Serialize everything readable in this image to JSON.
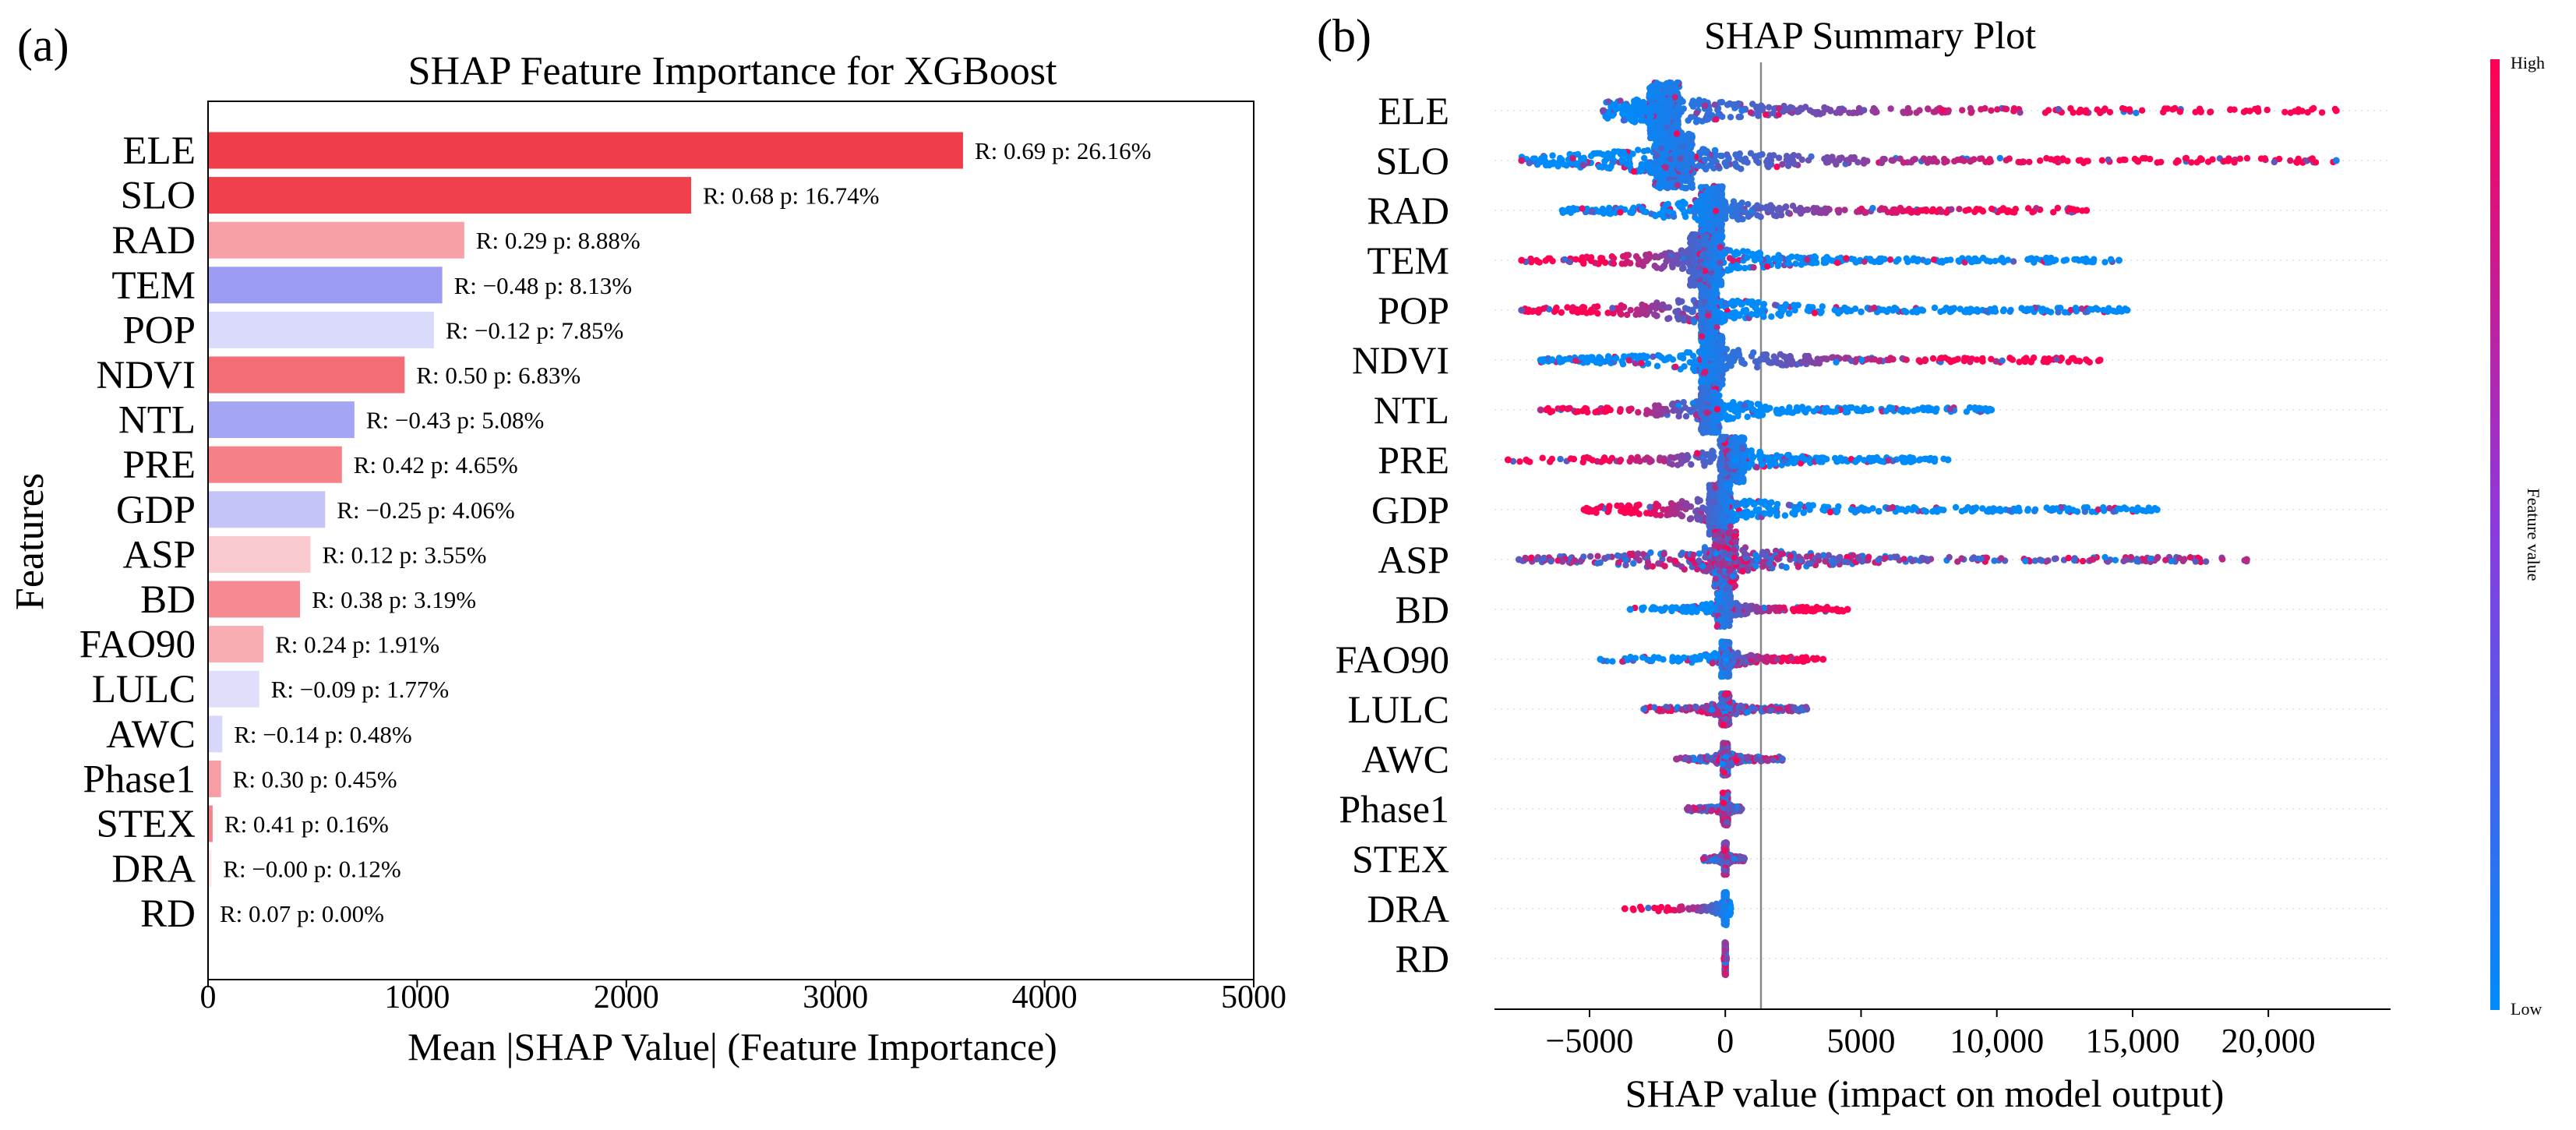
{
  "figure": {
    "panel_a_label": "(a)",
    "panel_b_label": "(b)"
  },
  "colors": {
    "positive_strong": "#ef3e4a",
    "negative_strong": "#7878f2",
    "high": "#ff0052",
    "low": "#008bfb"
  },
  "chart_data": [
    {
      "type": "bar",
      "orientation": "horizontal",
      "title": "SHAP Feature Importance for XGBoost",
      "xlabel": "Mean |SHAP Value| (Feature Importance)",
      "ylabel": "Features",
      "xlim": [
        0,
        5000
      ],
      "xticks": [
        0,
        1000,
        2000,
        3000,
        4000,
        5000
      ],
      "categories": [
        "ELE",
        "SLO",
        "RAD",
        "TEM",
        "POP",
        "NDVI",
        "NTL",
        "PRE",
        "GDP",
        "ASP",
        "BD",
        "FAO90",
        "LULC",
        "AWC",
        "Phase1",
        "STEX",
        "DRA",
        "RD"
      ],
      "values": [
        3610,
        2310,
        1225,
        1120,
        1080,
        940,
        700,
        640,
        560,
        490,
        440,
        265,
        245,
        68,
        62,
        22,
        16,
        0
      ],
      "annotations": [
        "R: 0.69  p: 26.16%",
        "R: 0.68  p: 16.74%",
        "R: 0.29  p: 8.88%",
        "R: −0.48  p: 8.13%",
        "R: −0.12  p: 7.85%",
        "R: 0.50  p: 6.83%",
        "R: −0.43  p: 5.08%",
        "R: 0.42  p: 4.65%",
        "R: −0.25  p: 4.06%",
        "R: 0.12  p: 3.55%",
        "R: 0.38  p: 3.19%",
        "R: 0.24  p: 1.91%",
        "R: −0.09  p: 1.77%",
        "R: −0.14  p: 0.48%",
        "R: 0.30  p: 0.45%",
        "R: 0.41  p: 0.16%",
        "R: −0.00  p: 0.12%",
        "R: 0.07  p: 0.00%"
      ],
      "correlations": [
        0.69,
        0.68,
        0.29,
        -0.48,
        -0.12,
        0.5,
        -0.43,
        0.42,
        -0.25,
        0.12,
        0.38,
        0.24,
        -0.09,
        -0.14,
        0.3,
        0.41,
        -0.0,
        0.07
      ],
      "grid": false
    },
    {
      "type": "scatter",
      "subtype": "beeswarm",
      "title": "SHAP Summary Plot",
      "xlabel": "SHAP value (impact on model output)",
      "xlim": [
        -8500,
        24500
      ],
      "xticks": [
        -5000,
        0,
        5000,
        10000,
        15000,
        20000
      ],
      "xtick_labels": [
        "−5000",
        "0",
        "5000",
        "10,000",
        "15,000",
        "20,000"
      ],
      "categories": [
        "ELE",
        "SLO",
        "RAD",
        "TEM",
        "POP",
        "NDVI",
        "NTL",
        "PRE",
        "GDP",
        "ASP",
        "BD",
        "FAO90",
        "LULC",
        "AWC",
        "Phase1",
        "STEX",
        "DRA",
        "RD"
      ],
      "series": [
        {
          "name": "ELE",
          "min": -4500,
          "max": 22500,
          "core": [
            -2800,
            -1700
          ],
          "high_side": "right"
        },
        {
          "name": "SLO",
          "min": -7500,
          "max": 22500,
          "core": [
            -2600,
            -1200
          ],
          "high_side": "right"
        },
        {
          "name": "RAD",
          "min": -6000,
          "max": 13300,
          "core": [
            -900,
            -100
          ],
          "high_side": "right"
        },
        {
          "name": "TEM",
          "min": -7500,
          "max": 14500,
          "core": [
            -1300,
            -100
          ],
          "high_side": "left"
        },
        {
          "name": "POP",
          "min": -7500,
          "max": 14800,
          "core": [
            -900,
            -300
          ],
          "high_side": "left"
        },
        {
          "name": "NDVI",
          "min": -6800,
          "max": 13800,
          "core": [
            -900,
            -100
          ],
          "high_side": "right"
        },
        {
          "name": "NTL",
          "min": -6800,
          "max": 9800,
          "core": [
            -900,
            -200
          ],
          "high_side": "left"
        },
        {
          "name": "PRE",
          "min": -8000,
          "max": 8200,
          "core": [
            -200,
            700
          ],
          "high_side": "left"
        },
        {
          "name": "GDP",
          "min": -5200,
          "max": 15900,
          "core": [
            -600,
            200
          ],
          "high_side": "left"
        },
        {
          "name": "ASP",
          "min": -7600,
          "max": 19200,
          "core": [
            -400,
            400
          ],
          "high_side": "mixed"
        },
        {
          "name": "BD",
          "min": -3500,
          "max": 4500,
          "core": [
            -300,
            200
          ],
          "high_side": "right"
        },
        {
          "name": "FAO90",
          "min": -4600,
          "max": 3600,
          "core": [
            -150,
            150
          ],
          "high_side": "right"
        },
        {
          "name": "LULC",
          "min": -3000,
          "max": 3000,
          "core": [
            -150,
            150
          ],
          "high_side": "mixed"
        },
        {
          "name": "AWC",
          "min": -1800,
          "max": 2100,
          "core": [
            -100,
            100
          ],
          "high_side": "mixed"
        },
        {
          "name": "Phase1",
          "min": -1400,
          "max": 600,
          "core": [
            -100,
            100
          ],
          "high_side": "mixed"
        },
        {
          "name": "STEX",
          "min": -800,
          "max": 700,
          "core": [
            -50,
            50
          ],
          "high_side": "mixed"
        },
        {
          "name": "DRA",
          "min": -3700,
          "max": 200,
          "core": [
            -50,
            50
          ],
          "high_side": "left"
        },
        {
          "name": "RD",
          "min": -40,
          "max": 40,
          "core": [
            -20,
            20
          ],
          "high_side": "mixed"
        }
      ],
      "colorbar": {
        "label": "Feature value",
        "high_label": "High",
        "low_label": "Low"
      }
    }
  ]
}
